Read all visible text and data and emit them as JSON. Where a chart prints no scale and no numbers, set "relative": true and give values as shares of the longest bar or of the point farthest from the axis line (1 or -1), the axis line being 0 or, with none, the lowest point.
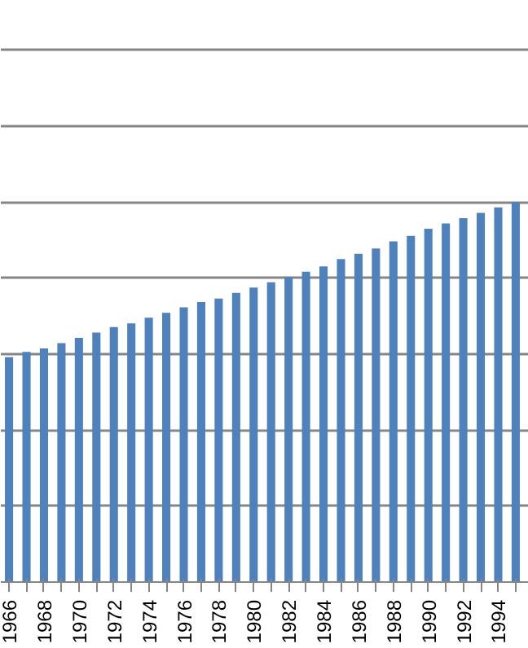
{
  "chart_data": {
    "type": "bar",
    "relative": true,
    "grid": "y",
    "color": "#4f81bd",
    "categories": [
      "1966",
      null,
      "1968",
      null,
      "1970",
      null,
      "1972",
      null,
      "1974",
      null,
      "1976",
      null,
      "1978",
      null,
      "1980",
      null,
      "1982",
      null,
      "1984",
      null,
      "1986",
      null,
      "1988",
      null,
      "1990",
      null,
      "1992",
      null,
      "1994",
      null
    ],
    "values": [
      0.592,
      0.606,
      0.615,
      0.629,
      0.643,
      0.657,
      0.671,
      0.681,
      0.696,
      0.709,
      0.723,
      0.737,
      0.746,
      0.761,
      0.775,
      0.789,
      0.803,
      0.817,
      0.831,
      0.85,
      0.864,
      0.878,
      0.897,
      0.911,
      0.93,
      0.944,
      0.958,
      0.972,
      0.986,
      1
    ]
  }
}
